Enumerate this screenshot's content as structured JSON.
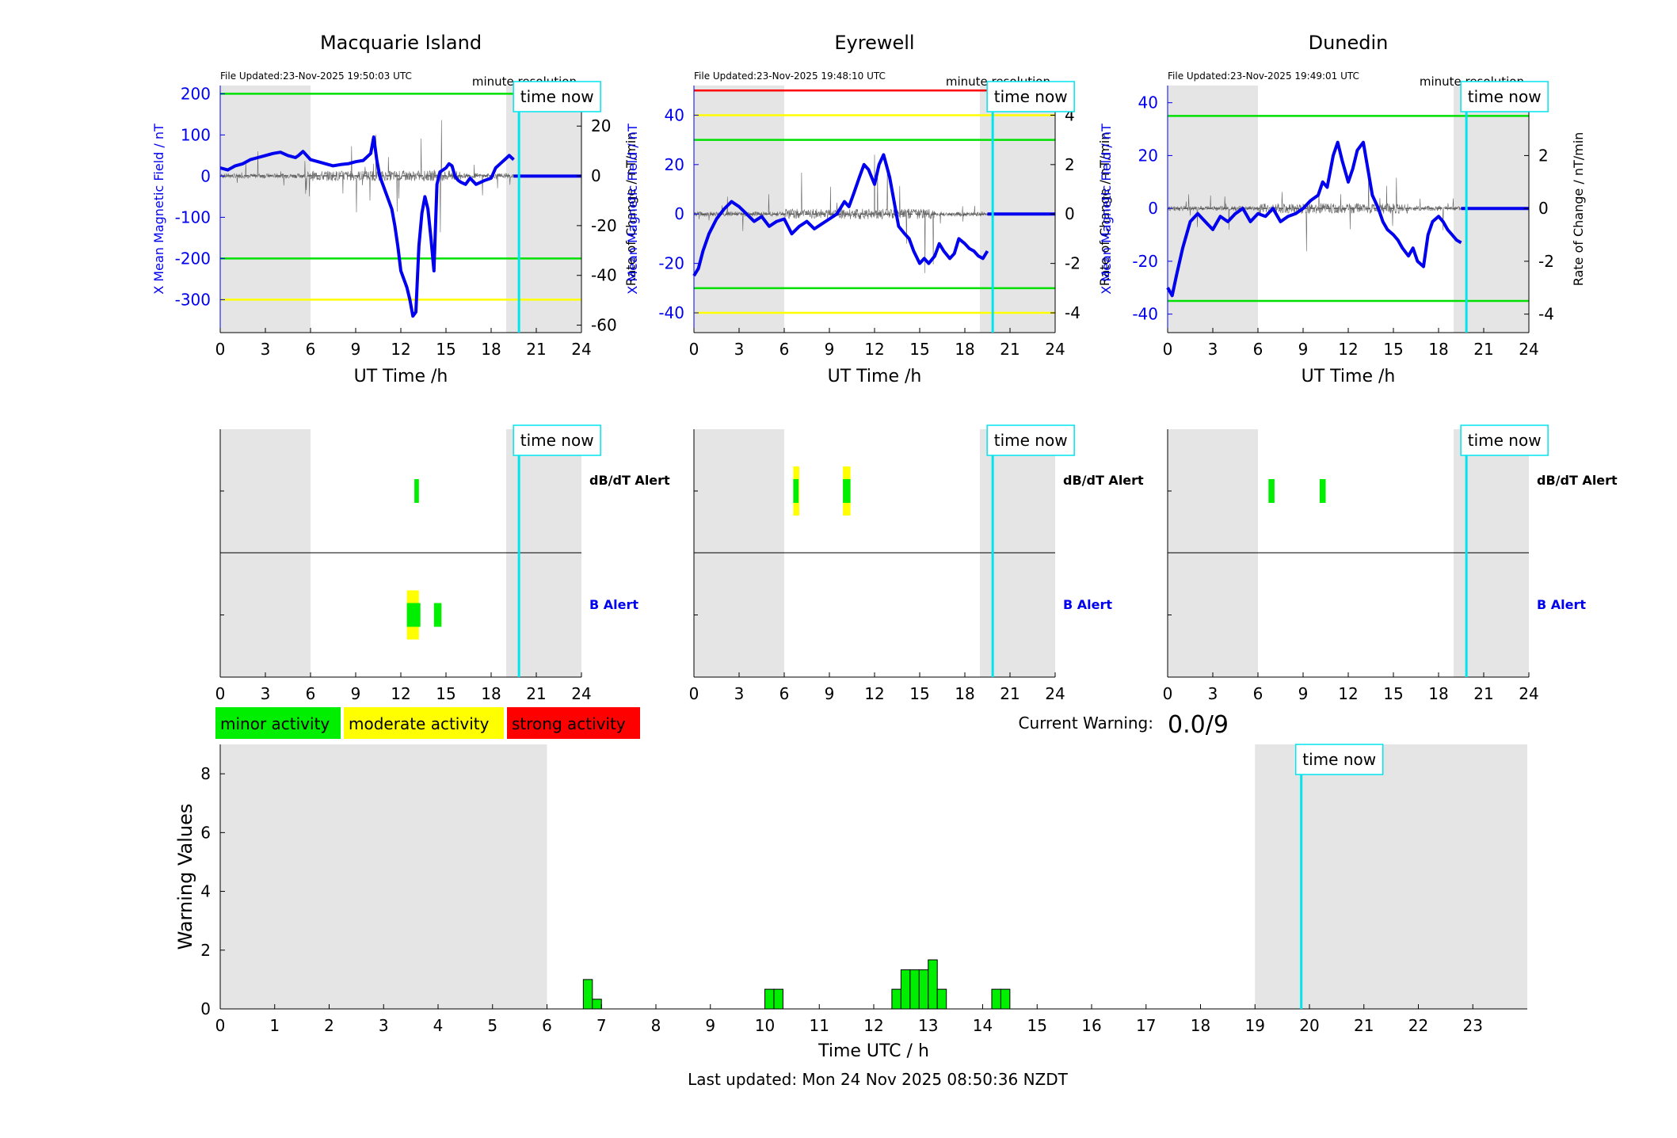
{
  "chart_data": [
    {
      "type": "line",
      "panel": "magnetometer",
      "station": "Macquarie Island",
      "title": "Macquarie Island",
      "file_updated": "File Updated:23-Nov-2025 19:50:03 UTC",
      "resolution_label": "minute resolution",
      "time_now_label": "time now",
      "time_now": 19.85,
      "night_shading": [
        [
          0,
          6
        ],
        [
          19,
          24
        ]
      ],
      "xlabel": "UT Time /h",
      "ylabel": "X Mean Magnetic Field / nT",
      "ylabel_right": "Rate of Change / nT/min",
      "xlim": [
        0,
        24
      ],
      "ylim": [
        -380,
        220
      ],
      "ylim_right": [
        -63,
        36.3
      ],
      "xticks": [
        0,
        3,
        6,
        9,
        12,
        15,
        18,
        21,
        24
      ],
      "yticks": [
        -300,
        -200,
        -100,
        0,
        100,
        200
      ],
      "yticks_right": [
        -60,
        -40,
        -20,
        0,
        20
      ],
      "thresholds": [
        {
          "value": 200,
          "color": "#00e000"
        },
        {
          "value": -200,
          "color": "#00e000"
        },
        {
          "value": -300,
          "color": "#ffff00"
        }
      ],
      "series": [
        {
          "axis": "left",
          "color": "#0000ee",
          "x": [
            0,
            0.5,
            1,
            1.5,
            2,
            2.5,
            3,
            3.5,
            4,
            4.5,
            5,
            5.2,
            5.5,
            6,
            6.5,
            7,
            7.5,
            8,
            8.5,
            9,
            9.5,
            10,
            10.2,
            10.4,
            10.6,
            10.8,
            11,
            11.2,
            11.4,
            11.6,
            11.8,
            12,
            12.2,
            12.4,
            12.6,
            12.8,
            13,
            13.2,
            13.4,
            13.6,
            13.8,
            14,
            14.2,
            14.4,
            14.6,
            14.8,
            15,
            15.2,
            15.4,
            15.6,
            15.8,
            16,
            16.3,
            16.6,
            17,
            17.3,
            17.6,
            18,
            18.3,
            18.6,
            18.9,
            19.2,
            19.5
          ],
          "values": [
            20,
            15,
            25,
            30,
            40,
            45,
            50,
            55,
            58,
            50,
            45,
            50,
            60,
            40,
            35,
            30,
            25,
            28,
            30,
            35,
            38,
            55,
            95,
            40,
            0,
            -20,
            -40,
            -60,
            -80,
            -120,
            -170,
            -230,
            -250,
            -270,
            -300,
            -340,
            -330,
            -170,
            -90,
            -50,
            -80,
            -150,
            -230,
            -20,
            10,
            15,
            20,
            30,
            25,
            0,
            -10,
            -15,
            -20,
            -5,
            -20,
            -15,
            -10,
            -5,
            20,
            30,
            40,
            50,
            40
          ]
        },
        {
          "axis": "left",
          "color": "#0000ee",
          "x": [
            19.5,
            24
          ],
          "values": [
            0,
            0
          ]
        }
      ]
    },
    {
      "type": "line",
      "panel": "magnetometer",
      "station": "Eyrewell",
      "title": "Eyrewell",
      "file_updated": "File Updated:23-Nov-2025 19:48:10 UTC",
      "resolution_label": "minute resolution",
      "time_now_label": "time now",
      "time_now": 19.85,
      "night_shading": [
        [
          0,
          6
        ],
        [
          19,
          24
        ]
      ],
      "xlabel": "UT Time /h",
      "ylabel": "X Mean Magnetic Field / nT",
      "ylabel_right": "Rate of Change / nT/min",
      "xlim": [
        0,
        24
      ],
      "ylim": [
        -48,
        52
      ],
      "ylim_right": [
        -4.8,
        5.2
      ],
      "xticks": [
        0,
        3,
        6,
        9,
        12,
        15,
        18,
        21,
        24
      ],
      "yticks": [
        -40,
        -20,
        0,
        20,
        40
      ],
      "yticks_right": [
        -4,
        -2,
        0,
        2,
        4
      ],
      "thresholds": [
        {
          "value": 50,
          "color": "#ff0000"
        },
        {
          "value": 40,
          "color": "#ffff00"
        },
        {
          "value": 30,
          "color": "#00e000"
        },
        {
          "value": -30,
          "color": "#00e000"
        },
        {
          "value": -40,
          "color": "#ffff00"
        }
      ],
      "series": [
        {
          "axis": "left",
          "color": "#0000ee",
          "x": [
            0,
            0.3,
            0.6,
            1,
            1.5,
            2,
            2.5,
            3,
            3.5,
            4,
            4.5,
            5,
            5.5,
            6,
            6.5,
            7,
            7.5,
            8,
            8.5,
            9,
            9.5,
            10,
            10.3,
            10.6,
            11,
            11.3,
            11.6,
            12,
            12.3,
            12.6,
            13,
            13.3,
            13.6,
            14,
            14.3,
            14.6,
            15,
            15.3,
            15.6,
            16,
            16.3,
            16.6,
            17,
            17.3,
            17.6,
            18,
            18.3,
            18.6,
            18.9,
            19.2,
            19.5
          ],
          "values": [
            -25,
            -22,
            -15,
            -8,
            -2,
            2,
            5,
            3,
            0,
            -3,
            -1,
            -5,
            -3,
            -2,
            -8,
            -5,
            -3,
            -6,
            -4,
            -2,
            0,
            5,
            3,
            8,
            15,
            20,
            18,
            12,
            20,
            24,
            15,
            5,
            -5,
            -8,
            -10,
            -15,
            -20,
            -18,
            -20,
            -17,
            -12,
            -15,
            -18,
            -16,
            -10,
            -12,
            -14,
            -15,
            -17,
            -18,
            -15
          ]
        },
        {
          "axis": "left",
          "color": "#0000ee",
          "x": [
            19.5,
            24
          ],
          "values": [
            0,
            0
          ]
        }
      ]
    },
    {
      "type": "line",
      "panel": "magnetometer",
      "station": "Dunedin",
      "title": "Dunedin",
      "file_updated": "File Updated:23-Nov-2025 19:49:01 UTC",
      "resolution_label": "minute resolution",
      "time_now_label": "time now",
      "time_now": 19.85,
      "night_shading": [
        [
          0,
          6
        ],
        [
          19,
          24
        ]
      ],
      "xlabel": "UT Time /h",
      "ylabel": "X Mean Magnetic Field / nT",
      "ylabel_right": "Rate of Change / nT/min",
      "xlim": [
        0,
        24
      ],
      "ylim": [
        -47,
        46.5
      ],
      "ylim_right": [
        -4.7,
        4.65
      ],
      "xticks": [
        0,
        3,
        6,
        9,
        12,
        15,
        18,
        21,
        24
      ],
      "yticks": [
        -40,
        -20,
        0,
        20,
        40
      ],
      "yticks_right": [
        -4,
        -2,
        0,
        2,
        4
      ],
      "thresholds": [
        {
          "value": 35,
          "color": "#00e000"
        },
        {
          "value": -35,
          "color": "#00e000"
        }
      ],
      "series": [
        {
          "axis": "left",
          "color": "#0000ee",
          "x": [
            0,
            0.3,
            0.6,
            1,
            1.5,
            2,
            2.5,
            3,
            3.5,
            4,
            4.5,
            5,
            5.5,
            6,
            6.5,
            7,
            7.5,
            8,
            8.5,
            9,
            9.5,
            10,
            10.3,
            10.6,
            11,
            11.3,
            11.6,
            12,
            12.3,
            12.6,
            13,
            13.3,
            13.6,
            14,
            14.3,
            14.6,
            15,
            15.3,
            15.6,
            16,
            16.3,
            16.6,
            17,
            17.3,
            17.6,
            18,
            18.3,
            18.6,
            18.9,
            19.2,
            19.5
          ],
          "values": [
            -30,
            -33,
            -25,
            -15,
            -5,
            -2,
            -5,
            -8,
            -3,
            -5,
            -2,
            0,
            -5,
            -2,
            -3,
            0,
            -5,
            -3,
            -2,
            0,
            3,
            5,
            10,
            8,
            20,
            25,
            18,
            10,
            15,
            22,
            25,
            15,
            5,
            0,
            -5,
            -8,
            -10,
            -12,
            -15,
            -18,
            -15,
            -20,
            -22,
            -10,
            -5,
            -3,
            -5,
            -8,
            -10,
            -12,
            -13
          ]
        },
        {
          "axis": "left",
          "color": "#0000ee",
          "x": [
            19.5,
            24
          ],
          "values": [
            0,
            0
          ]
        }
      ]
    },
    {
      "type": "alert",
      "panel": "alerts",
      "station": "Macquarie Island",
      "time_now_label": "time now",
      "time_now": 19.85,
      "night_shading": [
        [
          0,
          6
        ],
        [
          19,
          24
        ]
      ],
      "xlim": [
        0,
        24
      ],
      "xticks": [
        0,
        3,
        6,
        9,
        12,
        15,
        18,
        21,
        24
      ],
      "row_labels": {
        "dbdt": "dB/dT Alert",
        "b": "B Alert"
      },
      "dbdt_alerts": [
        {
          "start": 12.9,
          "end": 13.2,
          "level": "minor"
        }
      ],
      "b_alerts": [
        {
          "start": 12.4,
          "end": 13.2,
          "level": "moderate"
        },
        {
          "start": 12.4,
          "end": 13.3,
          "level": "minor"
        },
        {
          "start": 14.2,
          "end": 14.7,
          "level": "minor"
        }
      ]
    },
    {
      "type": "alert",
      "panel": "alerts",
      "station": "Eyrewell",
      "time_now_label": "time now",
      "time_now": 19.85,
      "night_shading": [
        [
          0,
          6
        ],
        [
          19,
          24
        ]
      ],
      "xlim": [
        0,
        24
      ],
      "xticks": [
        0,
        3,
        6,
        9,
        12,
        15,
        18,
        21,
        24
      ],
      "row_labels": {
        "dbdt": "dB/dT Alert",
        "b": "B Alert"
      },
      "dbdt_alerts": [
        {
          "start": 6.6,
          "end": 7.0,
          "level": "moderate"
        },
        {
          "start": 6.6,
          "end": 6.95,
          "level": "minor"
        },
        {
          "start": 9.9,
          "end": 10.4,
          "level": "moderate"
        },
        {
          "start": 9.9,
          "end": 10.4,
          "level": "minor"
        }
      ],
      "b_alerts": []
    },
    {
      "type": "alert",
      "panel": "alerts",
      "station": "Dunedin",
      "time_now_label": "time now",
      "time_now": 19.85,
      "night_shading": [
        [
          0,
          6
        ],
        [
          19,
          24
        ]
      ],
      "xlim": [
        0,
        24
      ],
      "xticks": [
        0,
        3,
        6,
        9,
        12,
        15,
        18,
        21,
        24
      ],
      "row_labels": {
        "dbdt": "dB/dT Alert",
        "b": "B Alert"
      },
      "dbdt_alerts": [
        {
          "start": 6.7,
          "end": 7.1,
          "level": "minor"
        },
        {
          "start": 10.1,
          "end": 10.5,
          "level": "minor"
        }
      ],
      "b_alerts": []
    },
    {
      "type": "bar",
      "panel": "warning",
      "time_now_label": "time now",
      "time_now": 19.85,
      "night_shading": [
        [
          0,
          6
        ],
        [
          19,
          24
        ]
      ],
      "xlabel": "Time UTC / h",
      "ylabel": "Warning Values",
      "xlim": [
        0,
        24
      ],
      "ylim": [
        0,
        9
      ],
      "xticks": [
        0,
        1,
        2,
        3,
        4,
        5,
        6,
        7,
        8,
        9,
        10,
        11,
        12,
        13,
        14,
        15,
        16,
        17,
        18,
        19,
        20,
        21,
        22,
        23
      ],
      "yticks": [
        0,
        2,
        4,
        6,
        8
      ],
      "bin_width": 0.1667,
      "bars": [
        {
          "x": 6.667,
          "value": 1.0
        },
        {
          "x": 6.833,
          "value": 0.33
        },
        {
          "x": 10.0,
          "value": 0.67
        },
        {
          "x": 10.167,
          "value": 0.67
        },
        {
          "x": 12.333,
          "value": 0.67
        },
        {
          "x": 12.5,
          "value": 1.33
        },
        {
          "x": 12.667,
          "value": 1.33
        },
        {
          "x": 12.833,
          "value": 1.33
        },
        {
          "x": 13.0,
          "value": 1.67
        },
        {
          "x": 13.167,
          "value": 0.67
        },
        {
          "x": 14.167,
          "value": 0.67
        },
        {
          "x": 14.333,
          "value": 0.67
        }
      ]
    }
  ],
  "legend": [
    {
      "label": "minor activity",
      "color": "#00ee00"
    },
    {
      "label": "moderate activity",
      "color": "#ffff00"
    },
    {
      "label": "strong activity",
      "color": "#ff0000"
    }
  ],
  "current_warning": {
    "label": "Current Warning:",
    "value": "0.0/9"
  },
  "last_updated": "Last updated: Mon 24 Nov 2025 08:50:36 NZDT"
}
